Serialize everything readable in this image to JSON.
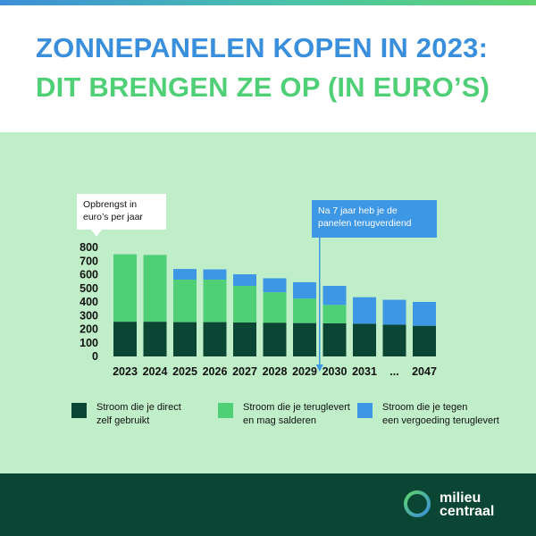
{
  "title_line1": "ZONNEPANELEN KOPEN IN 2023:",
  "title_line2": "DIT BRENGEN ZE OP (IN EURO’S)",
  "callout_ylabel": [
    "Opbrengst in",
    "euro’s per jaar"
  ],
  "callout_payback": [
    "Na 7 jaar heb je de",
    "panelen terugverdiend"
  ],
  "logo": [
    "milieu",
    "centraal"
  ],
  "colors": {
    "direct": "#0b4634",
    "salderen": "#4fd077",
    "vergoeding": "#3e97e4",
    "panel_bg": "#bfeec8",
    "footer_bg": "#0b4634"
  },
  "chart_data": {
    "type": "bar",
    "stacked": true,
    "categories": [
      "2023",
      "2024",
      "2025",
      "2026",
      "2027",
      "2028",
      "2029",
      "2030",
      "2031",
      "...",
      "2047"
    ],
    "series": [
      {
        "key": "direct",
        "values": [
          255,
          255,
          252,
          252,
          250,
          248,
          245,
          243,
          240,
          233,
          225
        ]
      },
      {
        "key": "salderen",
        "values": [
          495,
          490,
          312,
          312,
          268,
          223,
          180,
          135,
          0,
          0,
          0
        ]
      },
      {
        "key": "vergoeding",
        "values": [
          0,
          0,
          78,
          75,
          85,
          103,
          120,
          140,
          195,
          183,
          175
        ]
      }
    ],
    "yticks": [
      0,
      100,
      200,
      300,
      400,
      500,
      600,
      700,
      800
    ],
    "ylim": [
      0,
      800
    ],
    "payback_after": "2029",
    "legend": [
      {
        "key": "direct",
        "lines": [
          "Stroom die je direct",
          "zelf gebruikt"
        ]
      },
      {
        "key": "salderen",
        "lines": [
          "Stroom die je teruglevert",
          "en mag salderen"
        ]
      },
      {
        "key": "vergoeding",
        "lines": [
          "Stroom die je tegen",
          "een vergoeding teruglevert"
        ]
      }
    ]
  }
}
